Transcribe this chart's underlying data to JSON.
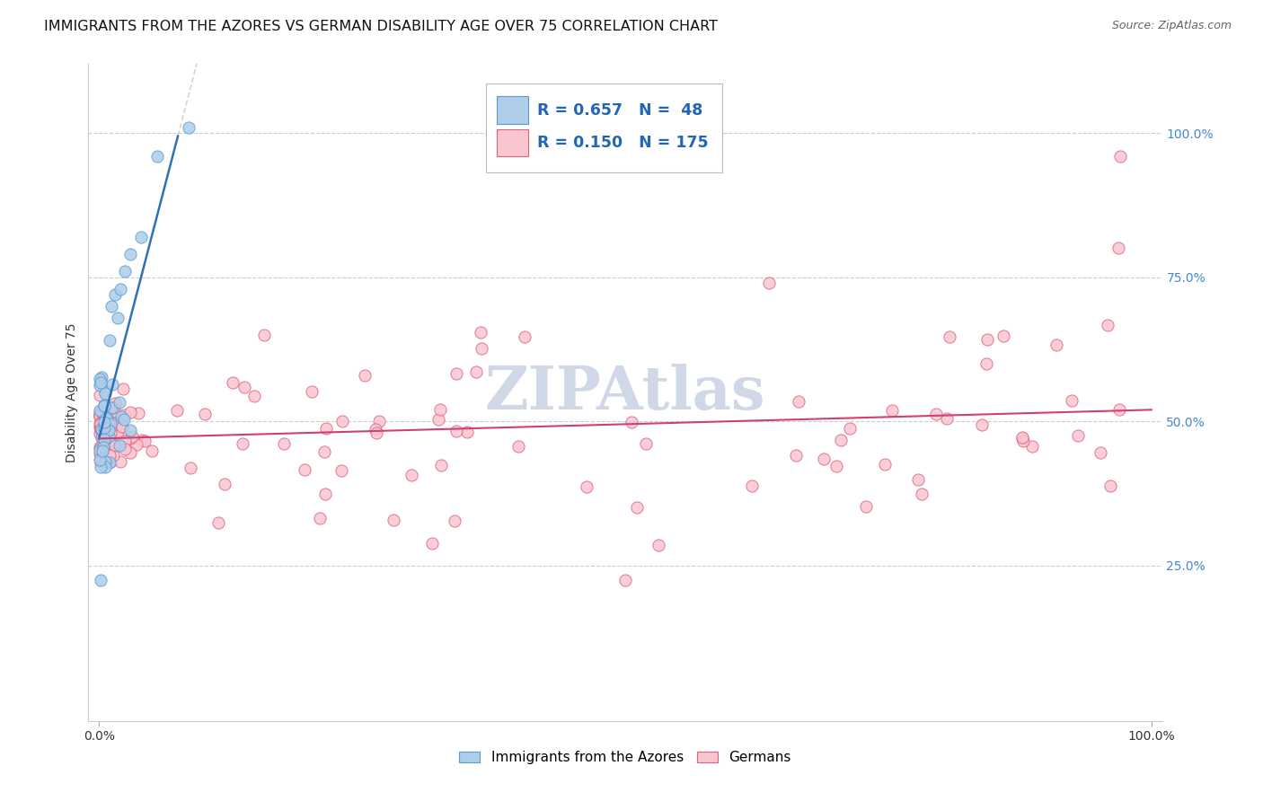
{
  "title": "IMMIGRANTS FROM THE AZORES VS GERMAN DISABILITY AGE OVER 75 CORRELATION CHART",
  "source": "Source: ZipAtlas.com",
  "ylabel": "Disability Age Over 75",
  "legend_label1": "Immigrants from the Azores",
  "legend_label2": "Germans",
  "R1": "0.657",
  "N1": "48",
  "R2": "0.150",
  "N2": "175",
  "color_blue_fill": "#aecde8",
  "color_blue_edge": "#5b9bd5",
  "color_pink_fill": "#f9c6d0",
  "color_pink_edge": "#e06080",
  "color_blue_line": "#3070b8",
  "color_pink_line": "#d04070",
  "background_color": "#ffffff",
  "grid_color": "#cccccc",
  "watermark_color": "#d0d8e8",
  "title_fontsize": 11.5,
  "source_fontsize": 9,
  "axis_label_fontsize": 10,
  "tick_fontsize": 10,
  "legend_fontsize": 12,
  "ytick_color": "#4488cc"
}
